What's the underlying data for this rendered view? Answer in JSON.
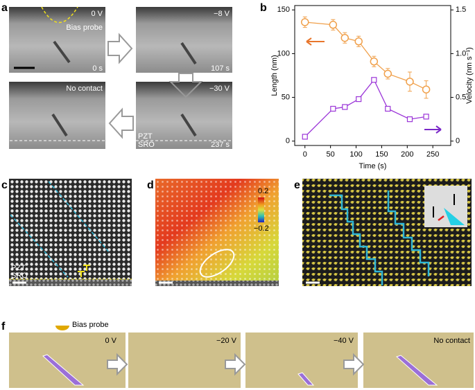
{
  "panel_labels": [
    "a",
    "b",
    "c",
    "d",
    "e",
    "f"
  ],
  "panel_a": {
    "texts": [
      "0 V",
      "Bias probe",
      "0 s",
      "−8 V",
      "107 s",
      "No contact",
      "−30 V",
      "PZT",
      "SRO",
      "237 s"
    ]
  },
  "panel_c": {
    "texts": [
      "PZT",
      "SRO"
    ]
  },
  "panel_d": {
    "colorbar": [
      "0.2",
      "−0.2"
    ]
  },
  "panel_f": {
    "texts": [
      "Bias probe",
      "0 V",
      "−20 V",
      "−40 V",
      "No contact"
    ]
  },
  "chart_data": {
    "type": "line",
    "xlabel": "Time (s)",
    "ylabel": "Length (nm)",
    "y2label": "Velocity (nm s⁻¹)",
    "x": [
      0,
      55,
      78,
      105,
      135,
      162,
      205,
      237
    ],
    "series": [
      {
        "color": "#f0a04b",
        "marker": "circle",
        "values": [
          136,
          133,
          118,
          114,
          91,
          77,
          68,
          59
        ],
        "errors": [
          6,
          6,
          6,
          6,
          6,
          6,
          11,
          10
        ]
      },
      {
        "color": "#9b35d8",
        "marker": "square",
        "axis": "y2",
        "values": [
          0.05,
          0.37,
          0.39,
          0.48,
          0.7,
          0.37,
          0.25,
          0.28
        ]
      }
    ],
    "xlim": [
      -20,
      285
    ],
    "xticks": [
      0,
      50,
      100,
      150,
      200,
      250
    ],
    "ylim": [
      -5,
      155
    ],
    "yticks": [
      0,
      50,
      100,
      150
    ],
    "y2lim": [
      -0.05,
      1.55
    ],
    "y2ticks": [
      0,
      0.5,
      {
        "value": 1.0,
        "label": "1.0"
      },
      1.5
    ]
  }
}
